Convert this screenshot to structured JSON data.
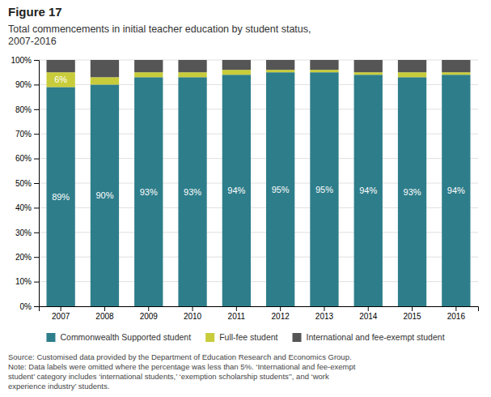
{
  "chart_data": {
    "type": "bar",
    "stacked": true,
    "title": "Figure 17",
    "subtitle": "Total commencements in initial teacher education by student status,\n2007-2016",
    "annotations": [
      "Source: Customised data provided by the Department of Education Research and Economics Group.\nNote: Data labels were omitted where the percentage was less than 5%. ‘International and fee-exempt\nstudent’ category includes ‘international students,’ ‘exemption scholarship students’’, and ‘work\nexperience industry’ students."
    ],
    "categories": [
      "2007",
      "2008",
      "2009",
      "2010",
      "2011",
      "2012",
      "2013",
      "2014",
      "2015",
      "2016"
    ],
    "series": [
      {
        "name": "Commonwealth Supported student",
        "color": "#2e7d8a",
        "values": [
          89,
          90,
          93,
          93,
          94,
          95,
          95,
          94,
          93,
          94
        ],
        "data_labels": true,
        "value_labels": [
          "89%",
          "90%",
          "93%",
          "93%",
          "94%",
          "95%",
          "95%",
          "94%",
          "93%",
          "94%"
        ]
      },
      {
        "name": "Full-fee student",
        "color": "#c8cc3a",
        "values": [
          6,
          3,
          2,
          2,
          2,
          1,
          1,
          1,
          2,
          1
        ],
        "data_labels": true,
        "value_labels": [
          "6%",
          null,
          null,
          null,
          null,
          null,
          null,
          null,
          null,
          null
        ]
      },
      {
        "name": "International and fee-exempt student",
        "color": "#555555",
        "values": [
          5,
          7,
          5,
          5,
          4,
          4,
          4,
          5,
          5,
          5
        ]
      }
    ],
    "ylim": [
      0,
      100
    ],
    "yticks": [
      {
        "value": 0,
        "label": "0%"
      },
      {
        "value": 10,
        "label": "10%"
      },
      {
        "value": 20,
        "label": "20%"
      },
      {
        "value": 30,
        "label": "30%"
      },
      {
        "value": 40,
        "label": "40%"
      },
      {
        "value": 50,
        "label": "50%"
      },
      {
        "value": 60,
        "label": "60%"
      },
      {
        "value": 70,
        "label": "70%"
      },
      {
        "value": 80,
        "label": "80%"
      },
      {
        "value": 90,
        "label": "90%"
      },
      {
        "value": 100,
        "label": "100%"
      }
    ],
    "grid": true,
    "legend": "bottom"
  }
}
